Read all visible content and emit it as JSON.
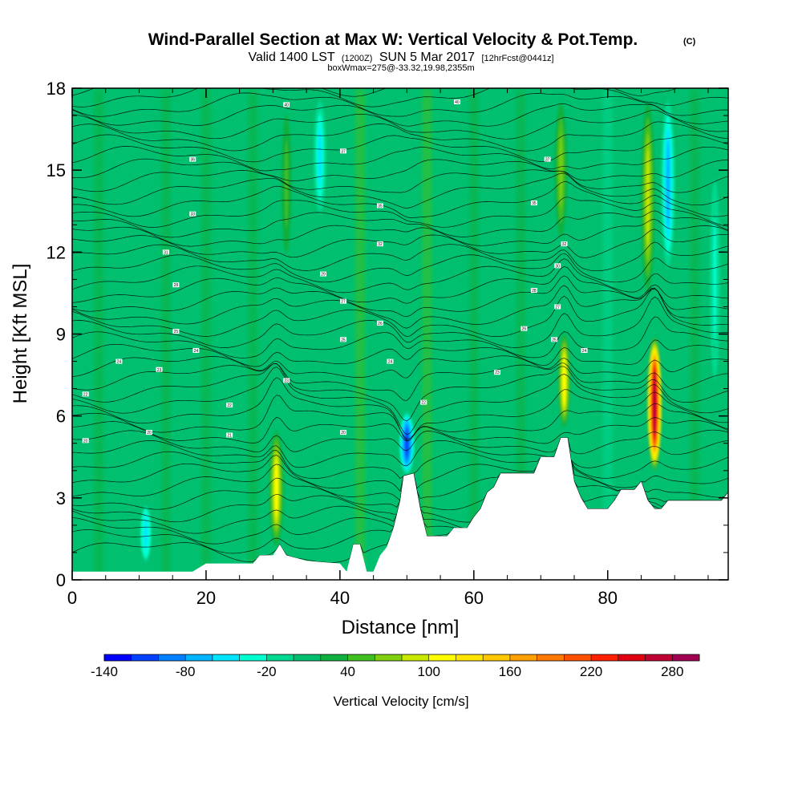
{
  "title": {
    "main": "Wind-Parallel Section at Max W: Vertical Velocity & Pot.Temp.",
    "mark": "(C)",
    "valid_prefix": "Valid 1400 LST",
    "valid_utc": "(1200Z)",
    "valid_date": "SUN 5 Mar 2017",
    "forecast": "[12hrFcst@0441z]",
    "box_info": "boxWmax=275@-33.32,19.98,2355m"
  },
  "chart_data": {
    "type": "heatmap",
    "xlabel": "Distance [nm]",
    "ylabel": "Height [Kft MSL]",
    "xlim": [
      0,
      98
    ],
    "ylim": [
      0,
      18
    ],
    "x_ticks": [
      0,
      20,
      40,
      60,
      80
    ],
    "y_ticks": [
      0,
      3,
      6,
      9,
      12,
      15,
      18
    ],
    "background_w": -5,
    "terrain": [
      [
        0,
        0.3
      ],
      [
        18,
        0.3
      ],
      [
        20,
        0.6
      ],
      [
        27,
        0.6
      ],
      [
        28,
        0.9
      ],
      [
        30,
        0.9
      ],
      [
        31,
        1.3
      ],
      [
        32,
        0.9
      ],
      [
        35,
        0.7
      ],
      [
        40,
        0.6
      ],
      [
        41,
        0.3
      ],
      [
        42,
        1.3
      ],
      [
        43,
        1.3
      ],
      [
        44,
        0.3
      ],
      [
        45,
        0.3
      ],
      [
        46,
        0.9
      ],
      [
        47,
        1.2
      ],
      [
        48,
        1.9
      ],
      [
        49,
        2.9
      ],
      [
        49.5,
        3.8
      ],
      [
        51,
        3.9
      ],
      [
        52,
        2.6
      ],
      [
        53,
        1.6
      ],
      [
        56,
        1.6
      ],
      [
        57,
        1.9
      ],
      [
        59,
        1.9
      ],
      [
        60,
        2.3
      ],
      [
        61,
        2.6
      ],
      [
        62,
        3.2
      ],
      [
        63,
        3.4
      ],
      [
        64,
        3.9
      ],
      [
        69,
        3.9
      ],
      [
        70,
        4.5
      ],
      [
        72,
        4.5
      ],
      [
        73,
        5.2
      ],
      [
        74,
        5.2
      ],
      [
        75,
        3.6
      ],
      [
        76,
        3.0
      ],
      [
        77,
        2.6
      ],
      [
        80,
        2.6
      ],
      [
        81,
        2.9
      ],
      [
        82,
        3.3
      ],
      [
        84,
        3.3
      ],
      [
        85,
        3.6
      ],
      [
        86,
        2.9
      ],
      [
        87,
        2.6
      ],
      [
        88,
        2.6
      ],
      [
        89,
        2.9
      ],
      [
        97,
        2.9
      ],
      [
        98,
        3.2
      ]
    ],
    "updrafts": [
      {
        "x": 30.5,
        "ybot": 1.0,
        "ytop": 5.7,
        "w": 100
      },
      {
        "x": 50.0,
        "ybot": 3.8,
        "ytop": 6.2,
        "w": -100
      },
      {
        "x": 73.5,
        "ybot": 5.2,
        "ytop": 9.4,
        "w": 115
      },
      {
        "x": 87.0,
        "ybot": 3.8,
        "ytop": 9.1,
        "w": 275
      },
      {
        "x": 32.0,
        "ybot": 11.0,
        "ytop": 18.0,
        "w": 45
      },
      {
        "x": 37.0,
        "ybot": 13.0,
        "ytop": 18.0,
        "w": -50
      },
      {
        "x": 73.0,
        "ybot": 12.0,
        "ytop": 18.0,
        "w": 60
      },
      {
        "x": 86.0,
        "ybot": 10.0,
        "ytop": 18.0,
        "w": 85
      },
      {
        "x": 89.0,
        "ybot": 11.0,
        "ytop": 18.0,
        "w": -70
      },
      {
        "x": 11.0,
        "ybot": 0.4,
        "ytop": 3.0,
        "w": -45
      },
      {
        "x": 96.0,
        "ybot": 6.0,
        "ytop": 16.0,
        "w": -30
      },
      {
        "x": 6.0,
        "ybot": 10.0,
        "ytop": 18.0,
        "w": 10
      },
      {
        "x": 22.0,
        "ybot": 7.0,
        "ytop": 16.0,
        "w": 10
      },
      {
        "x": 45.0,
        "ybot": 9.0,
        "ytop": 18.0,
        "w": 8
      },
      {
        "x": 62.0,
        "ybot": 8.0,
        "ytop": 17.0,
        "w": 12
      }
    ],
    "isentropes": {
      "count": 44,
      "labels": [
        {
          "x": 2,
          "y": 5.1,
          "text": "20"
        },
        {
          "x": 2,
          "y": 6.8,
          "text": "22"
        },
        {
          "x": 7,
          "y": 8.0,
          "text": "24"
        },
        {
          "x": 11.5,
          "y": 5.4,
          "text": "20"
        },
        {
          "x": 13,
          "y": 7.7,
          "text": "23"
        },
        {
          "x": 15.5,
          "y": 9.1,
          "text": "25"
        },
        {
          "x": 15.5,
          "y": 10.8,
          "text": "28"
        },
        {
          "x": 14,
          "y": 12.0,
          "text": "31"
        },
        {
          "x": 18,
          "y": 13.4,
          "text": "33"
        },
        {
          "x": 18,
          "y": 15.4,
          "text": "36"
        },
        {
          "x": 18.5,
          "y": 8.4,
          "text": "24"
        },
        {
          "x": 23.5,
          "y": 5.3,
          "text": "21"
        },
        {
          "x": 23.5,
          "y": 6.4,
          "text": "22"
        },
        {
          "x": 32,
          "y": 7.3,
          "text": "23"
        },
        {
          "x": 32,
          "y": 17.4,
          "text": "40"
        },
        {
          "x": 37.5,
          "y": 11.2,
          "text": "29"
        },
        {
          "x": 40.5,
          "y": 5.4,
          "text": "20"
        },
        {
          "x": 40.5,
          "y": 10.2,
          "text": "27"
        },
        {
          "x": 40.5,
          "y": 8.8,
          "text": "25"
        },
        {
          "x": 40.5,
          "y": 15.7,
          "text": "37"
        },
        {
          "x": 46,
          "y": 9.4,
          "text": "26"
        },
        {
          "x": 46,
          "y": 12.3,
          "text": "32"
        },
        {
          "x": 46,
          "y": 13.7,
          "text": "35"
        },
        {
          "x": 47.5,
          "y": 8.0,
          "text": "24"
        },
        {
          "x": 52.5,
          "y": 6.5,
          "text": "22"
        },
        {
          "x": 57.5,
          "y": 17.5,
          "text": "40"
        },
        {
          "x": 63.5,
          "y": 7.6,
          "text": "23"
        },
        {
          "x": 67.5,
          "y": 9.2,
          "text": "26"
        },
        {
          "x": 69,
          "y": 10.6,
          "text": "28"
        },
        {
          "x": 69,
          "y": 13.8,
          "text": "35"
        },
        {
          "x": 71,
          "y": 15.4,
          "text": "37"
        },
        {
          "x": 72,
          "y": 8.8,
          "text": "25"
        },
        {
          "x": 72.5,
          "y": 11.5,
          "text": "30"
        },
        {
          "x": 72.5,
          "y": 10.0,
          "text": "27"
        },
        {
          "x": 73.5,
          "y": 12.3,
          "text": "32"
        },
        {
          "x": 76.5,
          "y": 8.4,
          "text": "24"
        }
      ]
    },
    "colorbar": {
      "label": "Vertical Velocity [cm/s]",
      "ticks": [
        "-140",
        "-80",
        "-20",
        "40",
        "100",
        "160",
        "220",
        "280"
      ],
      "levels": [
        -140,
        -120,
        -100,
        -80,
        -60,
        -40,
        -20,
        0,
        20,
        40,
        60,
        80,
        100,
        120,
        140,
        160,
        180,
        200,
        220,
        240,
        260,
        280,
        300
      ],
      "colors": [
        "#0000ff",
        "#0040ff",
        "#0080ff",
        "#00b4ff",
        "#00e4ff",
        "#00ffd0",
        "#00d890",
        "#00c070",
        "#10b040",
        "#40c020",
        "#80d010",
        "#c8e800",
        "#ffff00",
        "#ffe400",
        "#ffc800",
        "#ffa000",
        "#ff7800",
        "#ff5000",
        "#ff2000",
        "#e00010",
        "#c00030",
        "#a00050"
      ]
    }
  }
}
